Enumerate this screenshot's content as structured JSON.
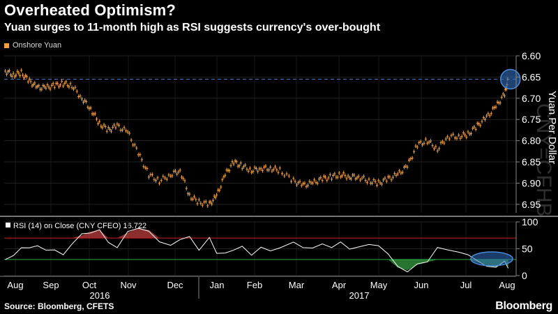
{
  "header": {
    "title": "Overheated Optimism?",
    "subtitle": "Yuan surges to 11-month high as RSI suggests currency's over-bought"
  },
  "legend": {
    "label": "Onshore Yuan",
    "color": "#f0a040"
  },
  "footer": {
    "source": "Source: Bloomberg, CFETS",
    "brand": "Bloomberg"
  },
  "watermark": "CNY=CFHB",
  "chart_data": [
    {
      "type": "line",
      "series_style": "candlestick",
      "ylabel": "Yuan Per Dollar",
      "ylim": [
        6.6,
        6.97
      ],
      "y_inverted": true,
      "yticks": [
        "6.60",
        "6.65",
        "6.70",
        "6.75",
        "6.80",
        "6.85",
        "6.90",
        "6.95"
      ],
      "reference_line": 6.655,
      "highlight_circle_at": {
        "x": "Aug 2017",
        "y": 6.655
      },
      "x_months": [
        "Aug",
        "Sep",
        "Oct",
        "Nov",
        "Dec",
        "Jan",
        "Feb",
        "Mar",
        "Apr",
        "May",
        "Jun",
        "Jul",
        "Aug"
      ],
      "year_labels": [
        "2016",
        "2017"
      ],
      "series": [
        {
          "name": "Onshore Yuan",
          "points": [
            [
              "Aug 1",
              6.636
            ],
            [
              "Aug 8",
              6.645
            ],
            [
              "Aug 15",
              6.64
            ],
            [
              "Aug 22",
              6.66
            ],
            [
              "Aug 29",
              6.675
            ],
            [
              "Sep 5",
              6.675
            ],
            [
              "Sep 12",
              6.67
            ],
            [
              "Sep 19",
              6.665
            ],
            [
              "Sep 26",
              6.67
            ],
            [
              "Oct 3",
              6.7
            ],
            [
              "Oct 10",
              6.725
            ],
            [
              "Oct 17",
              6.76
            ],
            [
              "Oct 24",
              6.775
            ],
            [
              "Oct 31",
              6.765
            ],
            [
              "Nov 7",
              6.78
            ],
            [
              "Nov 14",
              6.83
            ],
            [
              "Nov 21",
              6.88
            ],
            [
              "Nov 28",
              6.895
            ],
            [
              "Dec 5",
              6.88
            ],
            [
              "Dec 12",
              6.87
            ],
            [
              "Dec 19",
              6.93
            ],
            [
              "Dec 26",
              6.945
            ],
            [
              "Jan 3",
              6.95
            ],
            [
              "Jan 9",
              6.93
            ],
            [
              "Jan 16",
              6.88
            ],
            [
              "Jan 23",
              6.85
            ],
            [
              "Jan 30",
              6.86
            ],
            [
              "Feb 6",
              6.87
            ],
            [
              "Feb 13",
              6.865
            ],
            [
              "Feb 20",
              6.865
            ],
            [
              "Feb 27",
              6.87
            ],
            [
              "Mar 6",
              6.895
            ],
            [
              "Mar 13",
              6.905
            ],
            [
              "Mar 20",
              6.9
            ],
            [
              "Mar 27",
              6.89
            ],
            [
              "Apr 3",
              6.885
            ],
            [
              "Apr 10",
              6.88
            ],
            [
              "Apr 17",
              6.885
            ],
            [
              "Apr 24",
              6.885
            ],
            [
              "May 1",
              6.895
            ],
            [
              "May 8",
              6.9
            ],
            [
              "May 15",
              6.89
            ],
            [
              "May 22",
              6.88
            ],
            [
              "May 29",
              6.86
            ],
            [
              "Jun 5",
              6.81
            ],
            [
              "Jun 12",
              6.8
            ],
            [
              "Jun 19",
              6.82
            ],
            [
              "Jun 26",
              6.79
            ],
            [
              "Jul 3",
              6.79
            ],
            [
              "Jul 10",
              6.785
            ],
            [
              "Jul 17",
              6.765
            ],
            [
              "Jul 24",
              6.745
            ],
            [
              "Jul 31",
              6.72
            ],
            [
              "Aug 7",
              6.69
            ],
            [
              "Aug 10",
              6.655
            ]
          ]
        }
      ]
    },
    {
      "type": "line",
      "title": "RSI (14) on Close (CNY CFEO) 16.722",
      "ylim": [
        0,
        100
      ],
      "yticks": [
        "0",
        "50",
        "100"
      ],
      "overbought": 70,
      "oversold": 30,
      "highlight_circle_at": {
        "x": "Jul-Aug 2017",
        "y": 15
      },
      "series": [
        {
          "name": "RSI (14)",
          "points": [
            [
              "Aug 1",
              30
            ],
            [
              "Aug 8",
              35
            ],
            [
              "Aug 15",
              55
            ],
            [
              "Aug 22",
              50
            ],
            [
              "Aug 29",
              55
            ],
            [
              "Sep 5",
              50
            ],
            [
              "Sep 12",
              45
            ],
            [
              "Sep 19",
              40
            ],
            [
              "Sep 26",
              60
            ],
            [
              "Oct 3",
              75
            ],
            [
              "Oct 10",
              82
            ],
            [
              "Oct 17",
              85
            ],
            [
              "Oct 24",
              60
            ],
            [
              "Oct 31",
              55
            ],
            [
              "Nov 7",
              80
            ],
            [
              "Nov 14",
              88
            ],
            [
              "Nov 21",
              85
            ],
            [
              "Nov 28",
              60
            ],
            [
              "Dec 5",
              58
            ],
            [
              "Dec 12",
              68
            ],
            [
              "Dec 19",
              70
            ],
            [
              "Dec 26",
              50
            ],
            [
              "Jan 3",
              70
            ],
            [
              "Jan 9",
              40
            ],
            [
              "Jan 16",
              45
            ],
            [
              "Jan 23",
              45
            ],
            [
              "Jan 30",
              55
            ],
            [
              "Feb 6",
              40
            ],
            [
              "Feb 13",
              50
            ],
            [
              "Feb 20",
              48
            ],
            [
              "Feb 27",
              52
            ],
            [
              "Mar 6",
              60
            ],
            [
              "Mar 13",
              55
            ],
            [
              "Mar 20",
              50
            ],
            [
              "Mar 27",
              58
            ],
            [
              "Apr 3",
              55
            ],
            [
              "Apr 10",
              60
            ],
            [
              "Apr 17",
              50
            ],
            [
              "Apr 24",
              55
            ],
            [
              "May 1",
              55
            ],
            [
              "May 8",
              58
            ],
            [
              "May 15",
              40
            ],
            [
              "May 22",
              15
            ],
            [
              "May 29",
              10
            ],
            [
              "Jun 5",
              20
            ],
            [
              "Jun 12",
              25
            ],
            [
              "Jun 19",
              55
            ],
            [
              "Jun 26",
              45
            ],
            [
              "Jul 3",
              45
            ],
            [
              "Jul 10",
              40
            ],
            [
              "Jul 17",
              25
            ],
            [
              "Jul 24",
              20
            ],
            [
              "Jul 31",
              15
            ],
            [
              "Aug 7",
              25
            ],
            [
              "Aug 10",
              16.7
            ]
          ]
        }
      ]
    }
  ]
}
